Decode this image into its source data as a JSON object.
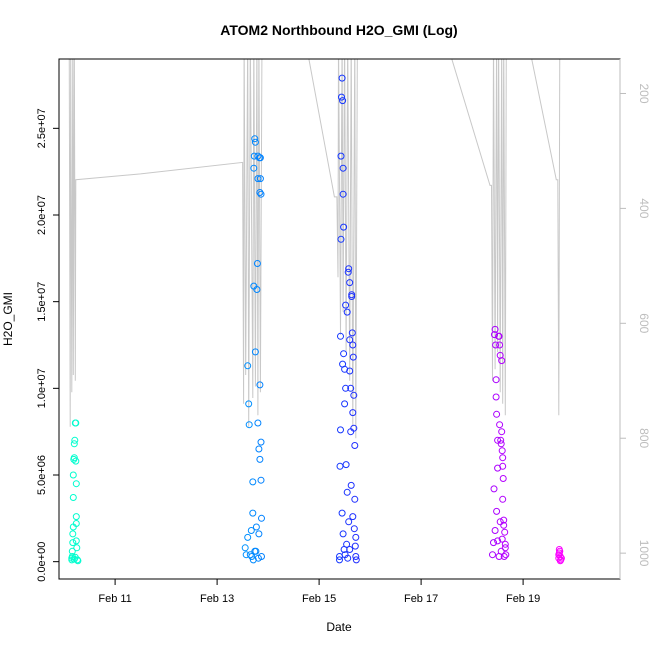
{
  "chart_data": {
    "type": "scatter",
    "title": "ATOM2 Northbound H2O_GMI (Log)",
    "xlabel": "Date",
    "ylabel": "H2O_GMI",
    "x_ticks": [
      "Feb 11",
      "Feb 13",
      "Feb 15",
      "Feb 17",
      "Feb 19"
    ],
    "x_tick_days": [
      11,
      13,
      15,
      17,
      19
    ],
    "xlim": [
      9.9,
      20.9
    ],
    "y_ticks": [
      "0.0e+00",
      "5.0e+06",
      "1.0e+07",
      "1.5e+07",
      "2.0e+07",
      "2.5e+07"
    ],
    "y_tick_values": [
      0,
      5000000,
      10000000,
      15000000,
      20000000,
      25000000
    ],
    "ylim": [
      -1000000,
      29000000
    ],
    "y2_ticks": [
      "200",
      "400",
      "600",
      "800",
      "1000"
    ],
    "y2_tick_values": [
      200,
      400,
      600,
      800,
      1000
    ],
    "y2lim": [
      1045,
      140
    ],
    "grid": false,
    "points": [
      [
        10.15,
        100000
      ],
      [
        10.15,
        200000
      ],
      [
        10.16,
        300000
      ],
      [
        10.16,
        600000
      ],
      [
        10.17,
        1100000
      ],
      [
        10.17,
        1600000
      ],
      [
        10.18,
        2000000
      ],
      [
        10.18,
        3700000
      ],
      [
        10.18,
        5000000
      ],
      [
        10.19,
        5900000
      ],
      [
        10.2,
        6000000
      ],
      [
        10.2,
        6800000
      ],
      [
        10.21,
        7000000
      ],
      [
        10.22,
        8000000
      ],
      [
        10.23,
        8000000
      ],
      [
        10.23,
        5800000
      ],
      [
        10.24,
        4500000
      ],
      [
        10.24,
        2600000
      ],
      [
        10.24,
        2200000
      ],
      [
        10.24,
        1200000
      ],
      [
        10.25,
        800000
      ],
      [
        10.26,
        100000
      ],
      [
        10.27,
        50000
      ],
      [
        10.2,
        150000
      ],
      [
        10.22,
        250000
      ],
      [
        13.55,
        800000
      ],
      [
        13.57,
        400000
      ],
      [
        13.6,
        1400000
      ],
      [
        13.6,
        11300000
      ],
      [
        13.62,
        9100000
      ],
      [
        13.63,
        7900000
      ],
      [
        13.65,
        400000
      ],
      [
        13.67,
        1800000
      ],
      [
        13.7,
        2800000
      ],
      [
        13.7,
        4600000
      ],
      [
        13.72,
        15900000
      ],
      [
        13.72,
        22700000
      ],
      [
        13.73,
        23400000
      ],
      [
        13.74,
        24400000
      ],
      [
        13.75,
        24200000
      ],
      [
        13.75,
        12100000
      ],
      [
        13.76,
        600000
      ],
      [
        13.77,
        2000000
      ],
      [
        13.78,
        15700000
      ],
      [
        13.79,
        17200000
      ],
      [
        13.8,
        23400000
      ],
      [
        13.8,
        22100000
      ],
      [
        13.8,
        8000000
      ],
      [
        13.81,
        200000
      ],
      [
        13.82,
        1600000
      ],
      [
        13.82,
        6500000
      ],
      [
        13.83,
        23300000
      ],
      [
        13.84,
        21300000
      ],
      [
        13.84,
        10200000
      ],
      [
        13.85,
        23300000
      ],
      [
        13.85,
        22100000
      ],
      [
        13.86,
        21200000
      ],
      [
        13.86,
        4700000
      ],
      [
        13.87,
        2500000
      ],
      [
        13.87,
        300000
      ],
      [
        13.86,
        6900000
      ],
      [
        13.84,
        5900000
      ],
      [
        13.68,
        300000
      ],
      [
        13.71,
        100000
      ],
      [
        13.74,
        600000
      ],
      [
        15.4,
        100000
      ],
      [
        15.4,
        300000
      ],
      [
        15.41,
        5500000
      ],
      [
        15.42,
        7600000
      ],
      [
        15.42,
        13000000
      ],
      [
        15.43,
        23400000
      ],
      [
        15.44,
        26800000
      ],
      [
        15.45,
        27900000
      ],
      [
        15.46,
        26600000
      ],
      [
        15.47,
        22700000
      ],
      [
        15.47,
        21200000
      ],
      [
        15.48,
        19300000
      ],
      [
        15.5,
        11100000
      ],
      [
        15.5,
        9100000
      ],
      [
        15.52,
        10000000
      ],
      [
        15.53,
        5600000
      ],
      [
        15.55,
        4000000
      ],
      [
        15.55,
        14400000
      ],
      [
        15.57,
        16700000
      ],
      [
        15.58,
        16900000
      ],
      [
        15.6,
        16100000
      ],
      [
        15.6,
        12800000
      ],
      [
        15.62,
        10000000
      ],
      [
        15.62,
        7500000
      ],
      [
        15.64,
        15300000
      ],
      [
        15.64,
        15400000
      ],
      [
        15.65,
        13200000
      ],
      [
        15.66,
        12500000
      ],
      [
        15.67,
        11800000
      ],
      [
        15.68,
        9600000
      ],
      [
        15.68,
        7700000
      ],
      [
        15.7,
        6700000
      ],
      [
        15.7,
        3600000
      ],
      [
        15.72,
        1400000
      ],
      [
        15.72,
        300000
      ],
      [
        15.73,
        100000
      ],
      [
        15.45,
        2800000
      ],
      [
        15.47,
        1600000
      ],
      [
        15.49,
        700000
      ],
      [
        15.51,
        400000
      ],
      [
        15.54,
        1000000
      ],
      [
        15.56,
        200000
      ],
      [
        15.58,
        2300000
      ],
      [
        15.6,
        700000
      ],
      [
        15.63,
        4400000
      ],
      [
        15.66,
        2600000
      ],
      [
        15.69,
        1900000
      ],
      [
        15.71,
        900000
      ],
      [
        15.43,
        18600000
      ],
      [
        15.46,
        11400000
      ],
      [
        15.52,
        14800000
      ],
      [
        15.48,
        12000000
      ],
      [
        15.6,
        11000000
      ],
      [
        15.66,
        8600000
      ],
      [
        18.4,
        400000
      ],
      [
        18.42,
        1100000
      ],
      [
        18.43,
        4200000
      ],
      [
        18.44,
        13100000
      ],
      [
        18.45,
        13400000
      ],
      [
        18.46,
        12500000
      ],
      [
        18.47,
        10500000
      ],
      [
        18.48,
        8500000
      ],
      [
        18.5,
        7000000
      ],
      [
        18.5,
        5400000
      ],
      [
        18.52,
        13000000
      ],
      [
        18.53,
        13000000
      ],
      [
        18.54,
        12500000
      ],
      [
        18.55,
        11900000
      ],
      [
        18.56,
        7000000
      ],
      [
        18.57,
        6800000
      ],
      [
        18.58,
        7500000
      ],
      [
        18.59,
        6400000
      ],
      [
        18.6,
        5500000
      ],
      [
        18.6,
        3600000
      ],
      [
        18.62,
        2400000
      ],
      [
        18.62,
        2100000
      ],
      [
        18.64,
        1700000
      ],
      [
        18.65,
        800000
      ],
      [
        18.66,
        400000
      ],
      [
        18.45,
        1800000
      ],
      [
        18.48,
        2900000
      ],
      [
        18.5,
        1200000
      ],
      [
        18.53,
        300000
      ],
      [
        18.55,
        2300000
      ],
      [
        18.57,
        600000
      ],
      [
        18.59,
        1300000
      ],
      [
        18.61,
        4800000
      ],
      [
        18.63,
        300000
      ],
      [
        18.47,
        9500000
      ],
      [
        18.54,
        7900000
      ],
      [
        18.58,
        11600000
      ],
      [
        18.6,
        6000000
      ],
      [
        18.65,
        1000000
      ],
      [
        19.7,
        200000
      ],
      [
        19.7,
        400000
      ],
      [
        19.71,
        500000
      ],
      [
        19.72,
        600000
      ],
      [
        19.73,
        300000
      ],
      [
        19.74,
        100000
      ],
      [
        19.75,
        200000
      ],
      [
        19.71,
        700000
      ],
      [
        19.73,
        50000
      ]
    ],
    "pressure_trace": [
      [
        10.1,
        100
      ],
      [
        10.12,
        780
      ],
      [
        10.13,
        100
      ],
      [
        10.15,
        720
      ],
      [
        10.17,
        100
      ],
      [
        10.18,
        690
      ],
      [
        10.2,
        100
      ],
      [
        10.22,
        700
      ],
      [
        10.23,
        350
      ],
      [
        11.5,
        340
      ],
      [
        13.5,
        320
      ],
      [
        13.52,
        740
      ],
      [
        13.53,
        100
      ],
      [
        13.56,
        690
      ],
      [
        13.6,
        100
      ],
      [
        13.62,
        780
      ],
      [
        13.65,
        100
      ],
      [
        13.7,
        730
      ],
      [
        13.72,
        100
      ],
      [
        13.75,
        710
      ],
      [
        13.78,
        100
      ],
      [
        13.8,
        760
      ],
      [
        13.82,
        100
      ],
      [
        13.85,
        720
      ],
      [
        13.88,
        100
      ],
      [
        14.0,
        100
      ],
      [
        14.3,
        100
      ],
      [
        14.8,
        140
      ],
      [
        15.3,
        380
      ],
      [
        15.35,
        380
      ],
      [
        15.37,
        520
      ],
      [
        15.38,
        100
      ],
      [
        15.42,
        620
      ],
      [
        15.45,
        100
      ],
      [
        15.47,
        580
      ],
      [
        15.5,
        100
      ],
      [
        15.53,
        650
      ],
      [
        15.56,
        100
      ],
      [
        15.6,
        700
      ],
      [
        15.63,
        100
      ],
      [
        15.66,
        780
      ],
      [
        15.7,
        100
      ],
      [
        15.72,
        800
      ],
      [
        15.75,
        100
      ],
      [
        16.5,
        100
      ],
      [
        17.5,
        110
      ],
      [
        18.35,
        360
      ],
      [
        18.38,
        360
      ],
      [
        18.4,
        700
      ],
      [
        18.42,
        100
      ],
      [
        18.45,
        680
      ],
      [
        18.48,
        100
      ],
      [
        18.5,
        650
      ],
      [
        18.52,
        100
      ],
      [
        18.55,
        720
      ],
      [
        18.58,
        100
      ],
      [
        18.6,
        740
      ],
      [
        18.62,
        100
      ],
      [
        18.65,
        760
      ],
      [
        18.67,
        110
      ],
      [
        19.1,
        110
      ],
      [
        19.65,
        350
      ],
      [
        19.68,
        350
      ],
      [
        19.7,
        760
      ],
      [
        19.72,
        100
      ],
      [
        19.75,
        100
      ]
    ],
    "color_gradient": [
      "#00ffcc",
      "#00ccff",
      "#0044ff",
      "#6600ff",
      "#ff00ff"
    ]
  }
}
